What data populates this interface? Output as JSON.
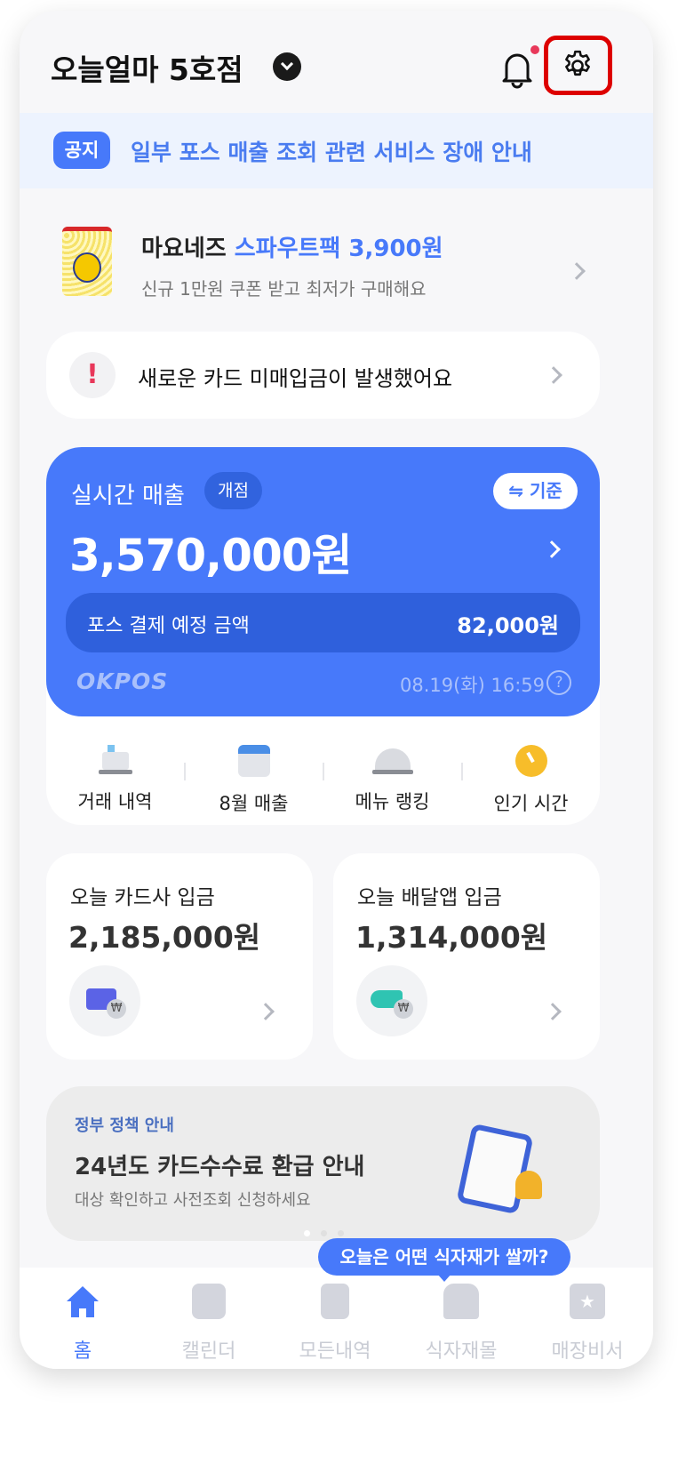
{
  "header": {
    "store_name": "오늘얼마 5호점",
    "icons": [
      "chevron-down-icon",
      "bell-icon",
      "gear-icon"
    ],
    "notification_dot": true
  },
  "notice": {
    "badge": "공지",
    "text": "일부 포스 매출 조회 관련 서비스 장애 안내"
  },
  "promo": {
    "title_plain": "마요네즈",
    "title_highlight": "스파우트팩 3,900원",
    "subtitle": "신규 1만원 쿠폰 받고 최저가 구매해요"
  },
  "alert": {
    "text": "새로운 카드 미매입금이 발생했어요"
  },
  "sales": {
    "title": "실시간 매출",
    "badge": "개점",
    "basis_button": "⇋ 기준",
    "amount": "3,570,000원",
    "pos_label": "포스 결제 예정 금액",
    "pos_amount": "82,000원",
    "logo": "OKPOS",
    "timestamp": "08.19(화) 16:59",
    "help": "?"
  },
  "quick_menu": [
    {
      "label": "거래 내역",
      "icon": "cash-register-icon"
    },
    {
      "label": "8월 매출",
      "icon": "calendar-icon"
    },
    {
      "label": "메뉴 랭킹",
      "icon": "cloche-icon"
    },
    {
      "label": "인기 시간",
      "icon": "clock-icon"
    }
  ],
  "deposits": [
    {
      "title": "오늘 카드사 입금",
      "amount": "2,185,000원",
      "icon": "card-won-icon"
    },
    {
      "title": "오늘 배달앱 입금",
      "amount": "1,314,000원",
      "icon": "scooter-won-icon"
    }
  ],
  "banner": {
    "tag": "정부 정책 안내",
    "title": "24년도 카드수수료 환급 안내",
    "subtitle": "대상 확인하고 사전조회 신청하세요",
    "page": 1,
    "pages": 3
  },
  "tooltip": "오늘은 어떤 식자재가 쌀까?",
  "nav": [
    {
      "label": "홈",
      "active": true
    },
    {
      "label": "캘린더"
    },
    {
      "label": "모든내역"
    },
    {
      "label": "식자재몰"
    },
    {
      "label": "매장비서"
    }
  ],
  "colors": {
    "primary": "#4779fa",
    "highlight": "#dd0000"
  }
}
